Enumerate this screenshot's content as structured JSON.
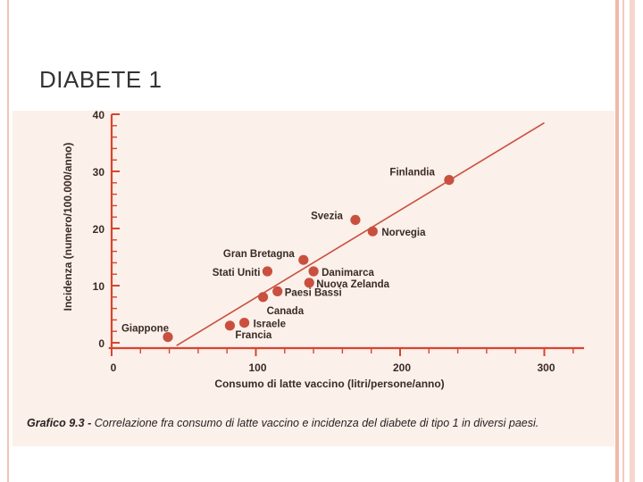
{
  "slide": {
    "title": "DIABETE 1"
  },
  "caption": {
    "lead": "Grafico 9.3 -",
    "text": "Correlazione fra consumo di latte vaccino e incidenza del diabete di tipo 1 in diversi paesi."
  },
  "colors": {
    "accent": "#c9503f",
    "axis": "#d9442f",
    "text": "#3b2a25"
  },
  "chart_data": {
    "type": "scatter",
    "title": "",
    "xlabel": "Consumo di latte vaccino (litri/persone/anno)",
    "ylabel": "Incidenza (numero/100.000/anno)",
    "xlim": [
      0,
      330
    ],
    "ylim": [
      0,
      40
    ],
    "xticks": [
      0,
      100,
      200,
      300
    ],
    "yticks": [
      0,
      10,
      20,
      30,
      40
    ],
    "grid": false,
    "points": [
      {
        "label": "Giappone",
        "x": 39,
        "y": 1
      },
      {
        "label": "Francia",
        "x": 82,
        "y": 3
      },
      {
        "label": "Israele",
        "x": 92,
        "y": 3.5
      },
      {
        "label": "Canada",
        "x": 105,
        "y": 8
      },
      {
        "label": "Stati Uniti",
        "x": 108,
        "y": 12.5
      },
      {
        "label": "Paesi Bassi",
        "x": 115,
        "y": 9
      },
      {
        "label": "Gran Bretagna",
        "x": 133,
        "y": 14.5
      },
      {
        "label": "Danimarca",
        "x": 140,
        "y": 12.5
      },
      {
        "label": "Nuova Zelanda",
        "x": 137,
        "y": 10.5
      },
      {
        "label": "Svezia",
        "x": 169,
        "y": 21.5
      },
      {
        "label": "Norvegia",
        "x": 181,
        "y": 19.5
      },
      {
        "label": "Finlandia",
        "x": 234,
        "y": 28.5
      }
    ],
    "trendline": {
      "x": [
        45,
        300
      ],
      "y": [
        -0.5,
        38.5
      ]
    }
  }
}
